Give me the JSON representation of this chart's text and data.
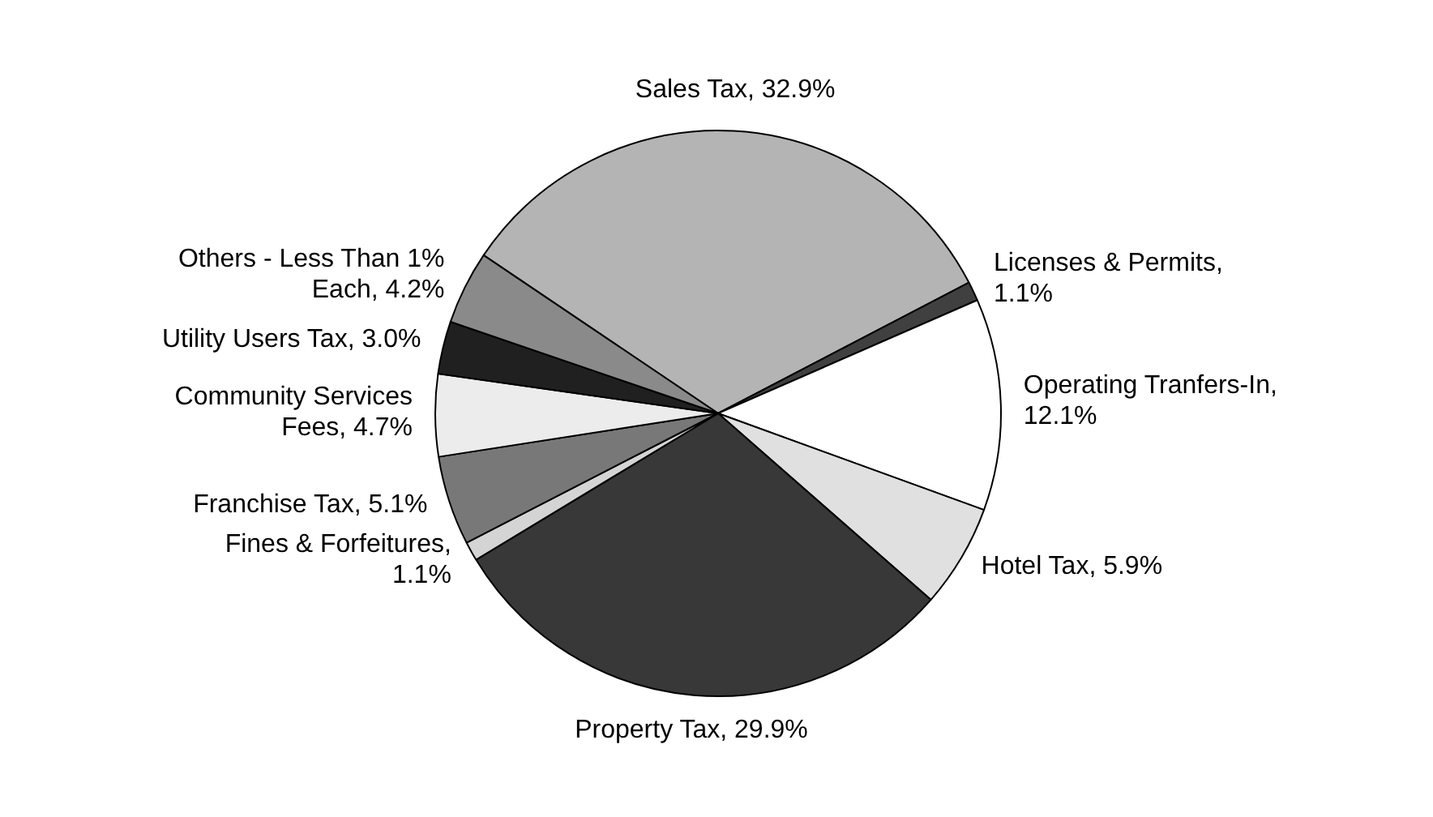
{
  "chart_data": {
    "type": "pie",
    "categories": [
      "Sales Tax, 32.9%",
      "Licenses & Permits, 1.1%",
      "Operating Tranfers-In, 12.1%",
      "Hotel Tax, 5.9%",
      "Property Tax, 29.9%",
      "Fines & Forfeitures, 1.1%",
      "Franchise Tax, 5.1%",
      "Community Services Fees, 4.7%",
      "Utility Users Tax, 3.0%",
      "Others - Less Than 1% Each, 4.2%"
    ],
    "values": [
      32.9,
      1.1,
      12.1,
      5.9,
      29.9,
      1.1,
      5.1,
      4.7,
      3.0,
      4.2
    ],
    "colors": [
      "#b4b4b4",
      "#404040",
      "#ffffff",
      "#e0e0e0",
      "#383838",
      "#d4d4d4",
      "#787878",
      "#ececec",
      "#202020",
      "#8a8a8a"
    ],
    "legend": false
  }
}
